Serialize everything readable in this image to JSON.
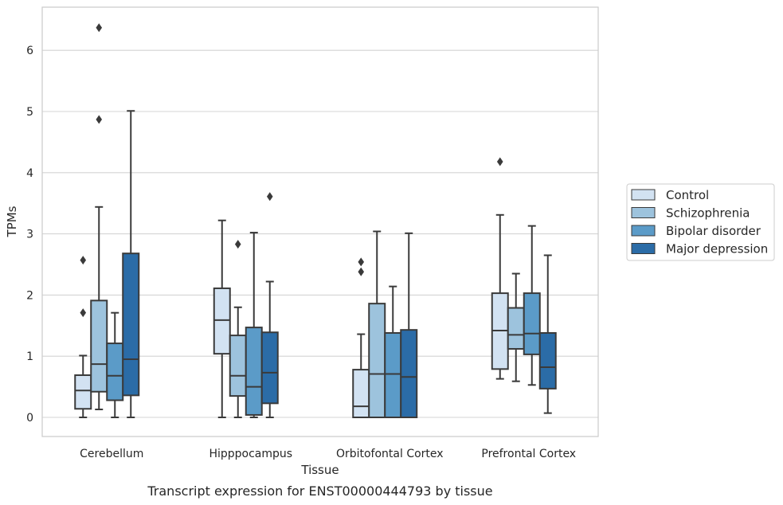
{
  "caption": "Transcript expression for ENST00000444793 by tissue",
  "chart_data": {
    "type": "box",
    "title": "",
    "xlabel": "Tissue",
    "ylabel": "TPMs",
    "ylim": [
      -0.3,
      6.7
    ],
    "yticks": [
      0,
      1,
      2,
      3,
      4,
      5,
      6
    ],
    "grid": "horizontal",
    "legend_placement": "right-center",
    "categories": [
      "Cerebellum",
      "Hipppocampus",
      "Orbitofontal Cortex",
      "Prefrontal Cortex"
    ],
    "series": [
      {
        "name": "Control",
        "color": "#d2e2f2",
        "boxes": [
          {
            "whislo": 0.0,
            "q1": 0.14,
            "med": 0.44,
            "q3": 0.69,
            "whishi": 1.01,
            "fliers": [
              1.71,
              2.57
            ]
          },
          {
            "whislo": 0.0,
            "q1": 1.04,
            "med": 1.59,
            "q3": 2.11,
            "whishi": 3.22,
            "fliers": []
          },
          {
            "whislo": 0.0,
            "q1": 0.0,
            "med": 0.18,
            "q3": 0.78,
            "whishi": 1.36,
            "fliers": [
              2.38,
              2.54
            ]
          },
          {
            "whislo": 0.63,
            "q1": 0.79,
            "med": 1.42,
            "q3": 2.03,
            "whishi": 3.31,
            "fliers": [
              4.18
            ]
          }
        ]
      },
      {
        "name": "Schizophrenia",
        "color": "#9dc3dd",
        "boxes": [
          {
            "whislo": 0.13,
            "q1": 0.42,
            "med": 0.87,
            "q3": 1.91,
            "whishi": 3.44,
            "fliers": [
              4.87,
              6.37
            ]
          },
          {
            "whislo": 0.0,
            "q1": 0.35,
            "med": 0.68,
            "q3": 1.34,
            "whishi": 1.8,
            "fliers": [
              2.83
            ]
          },
          {
            "whislo": 0.0,
            "q1": 0.0,
            "med": 0.71,
            "q3": 1.86,
            "whishi": 3.04,
            "fliers": []
          },
          {
            "whislo": 0.59,
            "q1": 1.12,
            "med": 1.35,
            "q3": 1.79,
            "whishi": 2.35,
            "fliers": []
          }
        ]
      },
      {
        "name": "Bipolar disorder",
        "color": "#5b9bc8",
        "boxes": [
          {
            "whislo": 0.0,
            "q1": 0.28,
            "med": 0.68,
            "q3": 1.21,
            "whishi": 1.71,
            "fliers": []
          },
          {
            "whislo": 0.0,
            "q1": 0.04,
            "med": 0.5,
            "q3": 1.47,
            "whishi": 3.02,
            "fliers": []
          },
          {
            "whislo": 0.0,
            "q1": 0.0,
            "med": 0.71,
            "q3": 1.38,
            "whishi": 2.14,
            "fliers": []
          },
          {
            "whislo": 0.53,
            "q1": 1.03,
            "med": 1.37,
            "q3": 2.03,
            "whishi": 3.13,
            "fliers": []
          }
        ]
      },
      {
        "name": "Major depression",
        "color": "#2b6ca7",
        "boxes": [
          {
            "whislo": 0.0,
            "q1": 0.36,
            "med": 0.95,
            "q3": 2.68,
            "whishi": 5.01,
            "fliers": []
          },
          {
            "whislo": 0.0,
            "q1": 0.23,
            "med": 0.73,
            "q3": 1.39,
            "whishi": 2.22,
            "fliers": [
              3.61
            ]
          },
          {
            "whislo": 0.0,
            "q1": 0.0,
            "med": 0.66,
            "q3": 1.43,
            "whishi": 3.01,
            "fliers": []
          },
          {
            "whislo": 0.07,
            "q1": 0.47,
            "med": 0.82,
            "q3": 1.38,
            "whishi": 2.65,
            "fliers": []
          }
        ]
      }
    ]
  }
}
